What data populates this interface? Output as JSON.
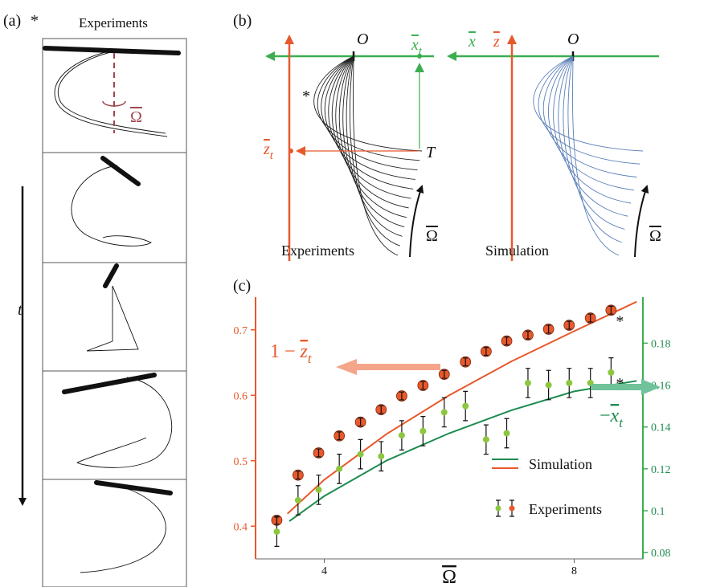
{
  "panels": {
    "a": {
      "label": "(a)",
      "star": "*",
      "title": "Experiments",
      "omega": "Ω",
      "time": "t"
    },
    "b": {
      "label": "(b)",
      "origin": "O",
      "x_symbol": "x",
      "x_sub": "t",
      "z_symbol": "z",
      "z_sub": "t",
      "tip": "T",
      "star": "*",
      "omega": "Ω",
      "left_caption": "Experiments",
      "x2": "x",
      "z2": "z",
      "origin2": "O",
      "omega2": "Ω",
      "right_caption": "Simulation"
    },
    "c": {
      "label": "(c)"
    }
  },
  "chart_data": {
    "type": "scatter",
    "x_label": "Ω",
    "left_label": {
      "prefix": "1 − ",
      "symbol": "z",
      "subscript": "t"
    },
    "right_label": {
      "prefix": "−",
      "symbol": "x",
      "subscript": "t"
    },
    "annotations": [
      "*",
      "*"
    ],
    "xlim": [
      2.9,
      9.1
    ],
    "xticks": [
      4,
      8
    ],
    "ylim": [
      0.35,
      0.75
    ],
    "yticks": [
      0.4,
      0.5,
      0.6,
      0.7
    ],
    "y2lim": [
      0.077,
      0.202
    ],
    "y2ticks": [
      0.08,
      0.1,
      0.12,
      0.14,
      0.16,
      0.18
    ],
    "grid": false,
    "series": [
      {
        "name": "Simulation",
        "kind": "line",
        "color": "#e8582c",
        "axis": "y",
        "x": [
          3.41,
          4,
          5,
          6,
          7,
          8,
          9
        ],
        "values": [
          0.419,
          0.471,
          0.541,
          0.6,
          0.652,
          0.698,
          0.743
        ]
      },
      {
        "kind": "line",
        "color": "#1e8c50",
        "axis": "y2",
        "x": [
          3.44,
          4,
          5,
          6,
          7,
          8,
          9
        ],
        "values": [
          0.095,
          0.107,
          0.124,
          0.137,
          0.148,
          0.157,
          0.162
        ]
      },
      {
        "name": "Experiments",
        "kind": "points",
        "color": "#e8582c",
        "axis": "y",
        "x": [
          3.24,
          3.58,
          3.91,
          4.24,
          4.58,
          4.91,
          5.24,
          5.58,
          5.92,
          6.26,
          6.59,
          6.92,
          7.26,
          7.59,
          7.92,
          8.26,
          8.59
        ],
        "values": [
          0.409,
          0.478,
          0.512,
          0.538,
          0.559,
          0.578,
          0.599,
          0.615,
          0.632,
          0.651,
          0.667,
          0.683,
          0.692,
          0.701,
          0.707,
          0.718,
          0.73
        ],
        "errors": [
          0.006,
          0.006,
          0.006,
          0.006,
          0.006,
          0.006,
          0.006,
          0.006,
          0.006,
          0.006,
          0.006,
          0.006,
          0.006,
          0.006,
          0.006,
          0.006,
          0.006
        ]
      },
      {
        "kind": "points",
        "color": "#8dc63f",
        "axis": "y2",
        "x": [
          3.24,
          3.58,
          3.91,
          4.24,
          4.58,
          4.91,
          5.24,
          5.58,
          5.92,
          6.26,
          6.59,
          6.92,
          7.26,
          7.59,
          7.92,
          8.26,
          8.59
        ],
        "values": [
          0.09,
          0.105,
          0.11,
          0.12,
          0.127,
          0.126,
          0.136,
          0.138,
          0.147,
          0.15,
          0.134,
          0.137,
          0.161,
          0.16,
          0.161,
          0.161,
          0.166
        ],
        "errors": [
          0.007,
          0.007,
          0.007,
          0.007,
          0.007,
          0.007,
          0.007,
          0.007,
          0.007,
          0.007,
          0.007,
          0.007,
          0.007,
          0.007,
          0.007,
          0.007,
          0.007
        ]
      }
    ]
  }
}
